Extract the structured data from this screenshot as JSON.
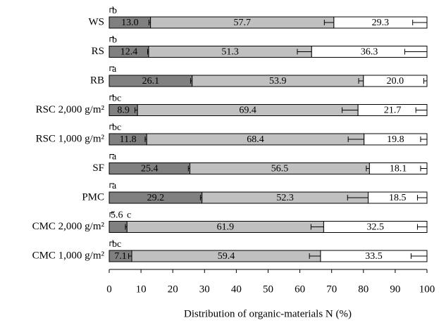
{
  "chart_data": {
    "type": "stacked-bar",
    "orientation": "horizontal",
    "x_label": "Distribution of organic-materials N (%)",
    "categories": [
      "WS",
      "RS",
      "RB",
      "RSC 2,000 g/m²",
      "RSC 1,000 g/m²",
      "SF",
      "PMC",
      "CMC 2,000 g/m²",
      "CMC 1,000 g/m²"
    ],
    "annotations": [
      "b",
      "b",
      "a",
      "bc",
      "bc",
      "a",
      "a",
      "c",
      "bc"
    ],
    "series": [
      {
        "color": "#808080",
        "values": [
          13.0,
          12.4,
          26.1,
          8.9,
          11.8,
          25.4,
          29.2,
          5.6,
          7.1
        ],
        "value_labels": [
          "13.0",
          "12.4",
          "26.1",
          "8.9",
          "11.8",
          "25.4",
          "29.2",
          "5.6",
          "7.1"
        ],
        "errors": [
          0.5,
          0.3,
          0.5,
          0.8,
          0.5,
          0.5,
          0.5,
          0.5,
          1.0
        ]
      },
      {
        "color": "#c0c0c0",
        "values": [
          57.7,
          51.3,
          53.9,
          69.4,
          68.4,
          56.5,
          52.3,
          61.9,
          59.4
        ],
        "value_labels": [
          "57.7",
          "51.3",
          "53.9",
          "69.4",
          "68.4",
          "56.5",
          "52.3",
          "61.9",
          "59.4"
        ],
        "errors": [
          3,
          4.5,
          1.5,
          5,
          5,
          1,
          6.5,
          4,
          3.5
        ]
      },
      {
        "color": "#ffffff",
        "values": [
          29.3,
          36.3,
          20.0,
          21.7,
          19.8,
          18.1,
          18.5,
          32.5,
          33.5
        ],
        "value_labels": [
          "29.3",
          "36.3",
          "20.0",
          "21.7",
          "19.8",
          "18.1",
          "18.5",
          "32.5",
          "33.5"
        ],
        "errors": [
          4.5,
          7,
          1,
          3.5,
          2,
          2,
          3,
          3,
          5
        ]
      }
    ],
    "xlim": [
      0,
      100
    ],
    "xticks": [
      0,
      10,
      20,
      30,
      40,
      50,
      60,
      70,
      80,
      90,
      100
    ]
  }
}
